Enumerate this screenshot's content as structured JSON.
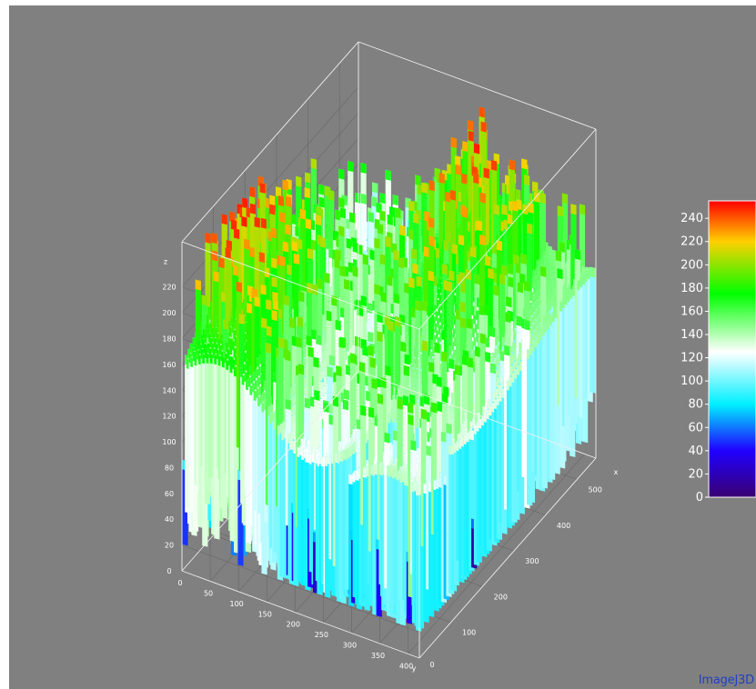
{
  "chart_data": {
    "type": "surface",
    "axes": {
      "x": {
        "label": "x",
        "ticks": [
          100,
          200,
          300,
          400,
          500
        ],
        "range": [
          0,
          560
        ]
      },
      "y": {
        "label": "y",
        "ticks": [
          0,
          50,
          100,
          150,
          200,
          250,
          300,
          350,
          400
        ],
        "range": [
          0,
          420
        ]
      },
      "z": {
        "label": "z",
        "ticks": [
          0,
          20,
          40,
          60,
          80,
          100,
          120,
          140,
          160,
          180,
          200,
          220
        ],
        "range": [
          0,
          255
        ]
      }
    },
    "colorbar": {
      "ticks": [
        0,
        20,
        40,
        60,
        80,
        100,
        120,
        140,
        160,
        180,
        200,
        220,
        240
      ],
      "range": [
        0,
        255
      ],
      "colormap": [
        {
          "v": 0,
          "color": "#3a0070"
        },
        {
          "v": 40,
          "color": "#2000ff"
        },
        {
          "v": 80,
          "color": "#00f0ff"
        },
        {
          "v": 125,
          "color": "#ffffff"
        },
        {
          "v": 175,
          "color": "#00ff00"
        },
        {
          "v": 220,
          "color": "#ffd000"
        },
        {
          "v": 255,
          "color": "#ff0000"
        }
      ]
    },
    "grid": true,
    "background": "#808080"
  },
  "watermark": "ImageJ3D"
}
